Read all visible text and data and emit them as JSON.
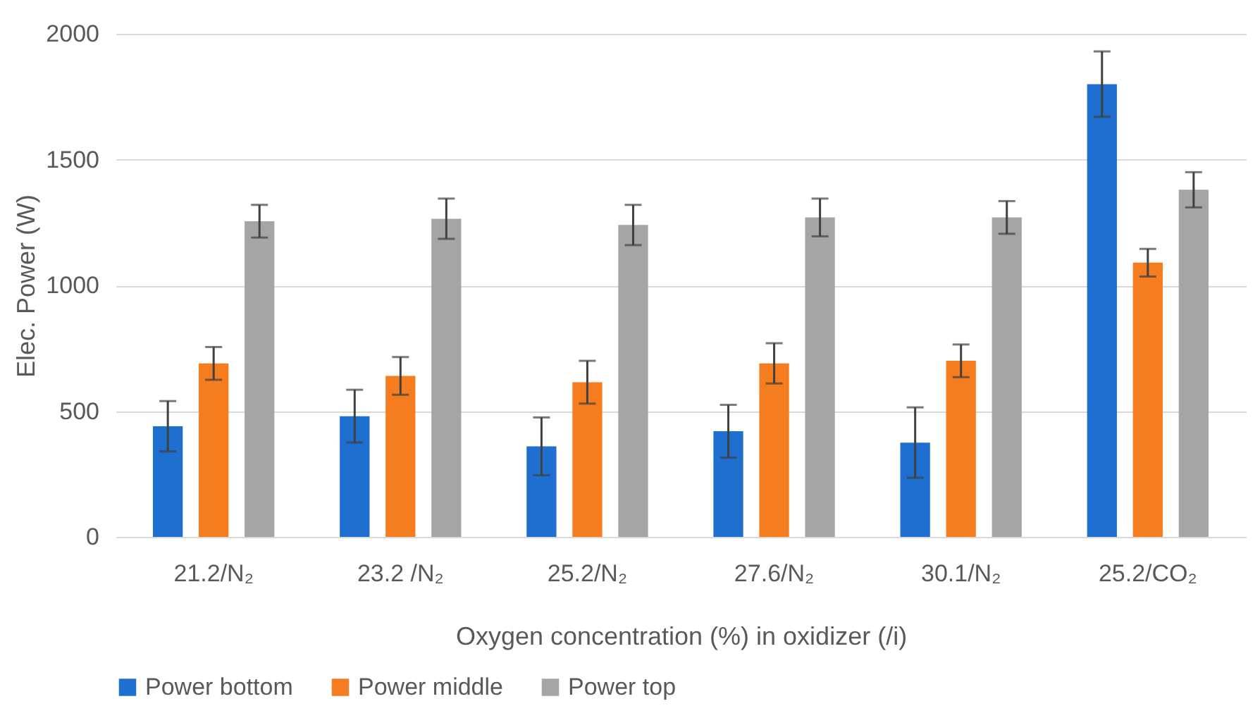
{
  "chart_data": {
    "type": "bar",
    "xlabel": "Oxygen concentration (%) in oxidizer (/i)",
    "ylabel": "Elec. Power (W)",
    "categories": [
      "21.2/N₂",
      "23.2 /N₂",
      "25.2/N₂",
      "27.6/N₂",
      "30.1/N₂",
      "25.2/CO₂"
    ],
    "series": [
      {
        "name": "Power bottom",
        "color": "#1f6fd0",
        "values": [
          440,
          480,
          360,
          420,
          375,
          1800
        ],
        "errors": [
          100,
          105,
          115,
          105,
          140,
          130
        ]
      },
      {
        "name": "Power middle",
        "color": "#f57c1f",
        "values": [
          690,
          640,
          615,
          690,
          700,
          1090
        ],
        "errors": [
          65,
          75,
          85,
          80,
          65,
          55
        ]
      },
      {
        "name": "Power top",
        "color": "#a5a5a5",
        "values": [
          1255,
          1265,
          1240,
          1270,
          1270,
          1380
        ],
        "errors": [
          65,
          80,
          80,
          75,
          65,
          70
        ]
      }
    ],
    "ylim": [
      0,
      2000
    ],
    "yticks": [
      0,
      500,
      1000,
      1500,
      2000
    ],
    "grid": "y",
    "legend": "bottom"
  }
}
